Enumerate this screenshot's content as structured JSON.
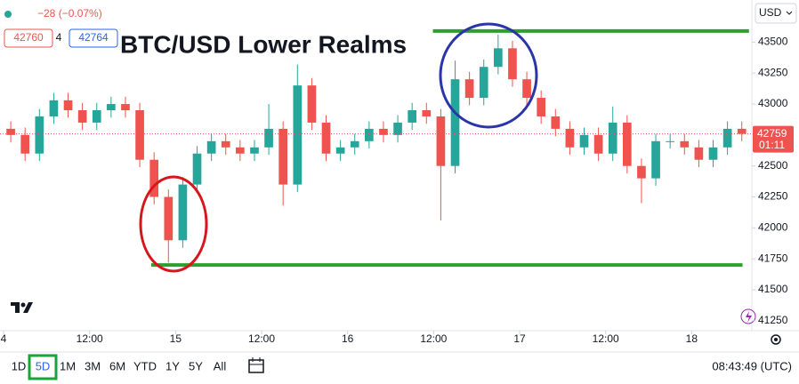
{
  "chart_data": {
    "type": "candlestick",
    "title": "BTC/USD Lower Realms",
    "change": "−28 (−0.07%)",
    "bid": 42760,
    "spread": 4,
    "ask": 42764,
    "currency": "USD",
    "last_price": 42759,
    "countdown": "01:11",
    "x": [
      1,
      3,
      5,
      7,
      9,
      11,
      13,
      15,
      17,
      19,
      21,
      23,
      25,
      27,
      29,
      31,
      33,
      35,
      37,
      39,
      41,
      43,
      45,
      47,
      49,
      51,
      53,
      55,
      57,
      59,
      61,
      63,
      65,
      67,
      69,
      71,
      73,
      75,
      77,
      79,
      81,
      83,
      85,
      87,
      89,
      91,
      93,
      95,
      97,
      99,
      101,
      103
    ],
    "open": [
      42800,
      42750,
      42600,
      42900,
      43030,
      42950,
      42850,
      42950,
      43000,
      42950,
      42550,
      42250,
      41900,
      42350,
      42600,
      42700,
      42650,
      42600,
      42650,
      42800,
      42350,
      43150,
      42850,
      42600,
      42650,
      42700,
      42800,
      42750,
      42850,
      42950,
      42900,
      42500,
      43200,
      43050,
      43300,
      43450,
      43200,
      43050,
      42900,
      42800,
      42650,
      42750,
      42600,
      42850,
      42500,
      42400,
      42700,
      42700,
      42650,
      42550,
      42650,
      42800
    ],
    "high": [
      42860,
      42810,
      42960,
      43090,
      43090,
      43010,
      43010,
      43060,
      43060,
      43010,
      42610,
      42310,
      42410,
      42660,
      42760,
      42760,
      42710,
      42710,
      43000,
      42860,
      43320,
      43210,
      42910,
      42710,
      42760,
      42860,
      42860,
      42910,
      43010,
      43010,
      42960,
      43350,
      43260,
      43360,
      43560,
      43510,
      43260,
      43110,
      42960,
      42860,
      42810,
      42810,
      42980,
      42910,
      42560,
      42760,
      42760,
      42760,
      42710,
      42710,
      42860,
      42860
    ],
    "low": [
      42690,
      42540,
      42540,
      42840,
      42890,
      42790,
      42790,
      42890,
      42890,
      42490,
      42190,
      41720,
      41840,
      42290,
      42540,
      42590,
      42540,
      42540,
      42590,
      42180,
      42290,
      42790,
      42540,
      42540,
      42590,
      42640,
      42690,
      42690,
      42790,
      42840,
      42060,
      42440,
      42990,
      42990,
      43240,
      43140,
      42990,
      42840,
      42740,
      42590,
      42590,
      42540,
      42540,
      42440,
      42200,
      42340,
      42640,
      42590,
      42490,
      42490,
      42590,
      42700
    ],
    "close": [
      42750,
      42600,
      42900,
      43030,
      42950,
      42850,
      42950,
      43000,
      42950,
      42550,
      42250,
      41900,
      42350,
      42600,
      42700,
      42650,
      42600,
      42650,
      42800,
      42350,
      43150,
      42850,
      42600,
      42650,
      42700,
      42800,
      42750,
      42850,
      42950,
      42900,
      42500,
      43200,
      43050,
      43300,
      43450,
      43200,
      43050,
      42900,
      42800,
      42650,
      42750,
      42600,
      42850,
      42500,
      42400,
      42700,
      42700,
      42650,
      42550,
      42650,
      42800,
      42759
    ],
    "up_color": "#26a69a",
    "down_color": "#ef5350",
    "xlim": [
      -0.5,
      104.4
    ],
    "ylim": [
      41170,
      43840
    ],
    "xticks": [
      {
        "value": 0,
        "label": "4"
      },
      {
        "value": 12,
        "label": "12:00"
      },
      {
        "value": 24,
        "label": "15"
      },
      {
        "value": 36,
        "label": "12:00"
      },
      {
        "value": 48,
        "label": "16"
      },
      {
        "value": 60,
        "label": "12:00"
      },
      {
        "value": 72,
        "label": "17"
      },
      {
        "value": 84,
        "label": "12:00"
      },
      {
        "value": 96,
        "label": "18"
      }
    ],
    "yticks": [
      41250,
      41500,
      41750,
      42000,
      42250,
      42500,
      42750,
      43000,
      43250,
      43500
    ],
    "levels": [
      {
        "value": 43590,
        "x": [
          59.9,
          104
        ],
        "color": "#2ca02c"
      },
      {
        "value": 41700,
        "x": [
          20.6,
          103.1
        ],
        "color": "#2ca02c"
      }
    ],
    "grid": false
  },
  "toolbar": {
    "ranges": [
      "1D",
      "5D",
      "1M",
      "3M",
      "6M",
      "YTD",
      "1Y",
      "5Y",
      "All"
    ],
    "selected": 1,
    "clock": "08:43:49 (UTC)"
  }
}
